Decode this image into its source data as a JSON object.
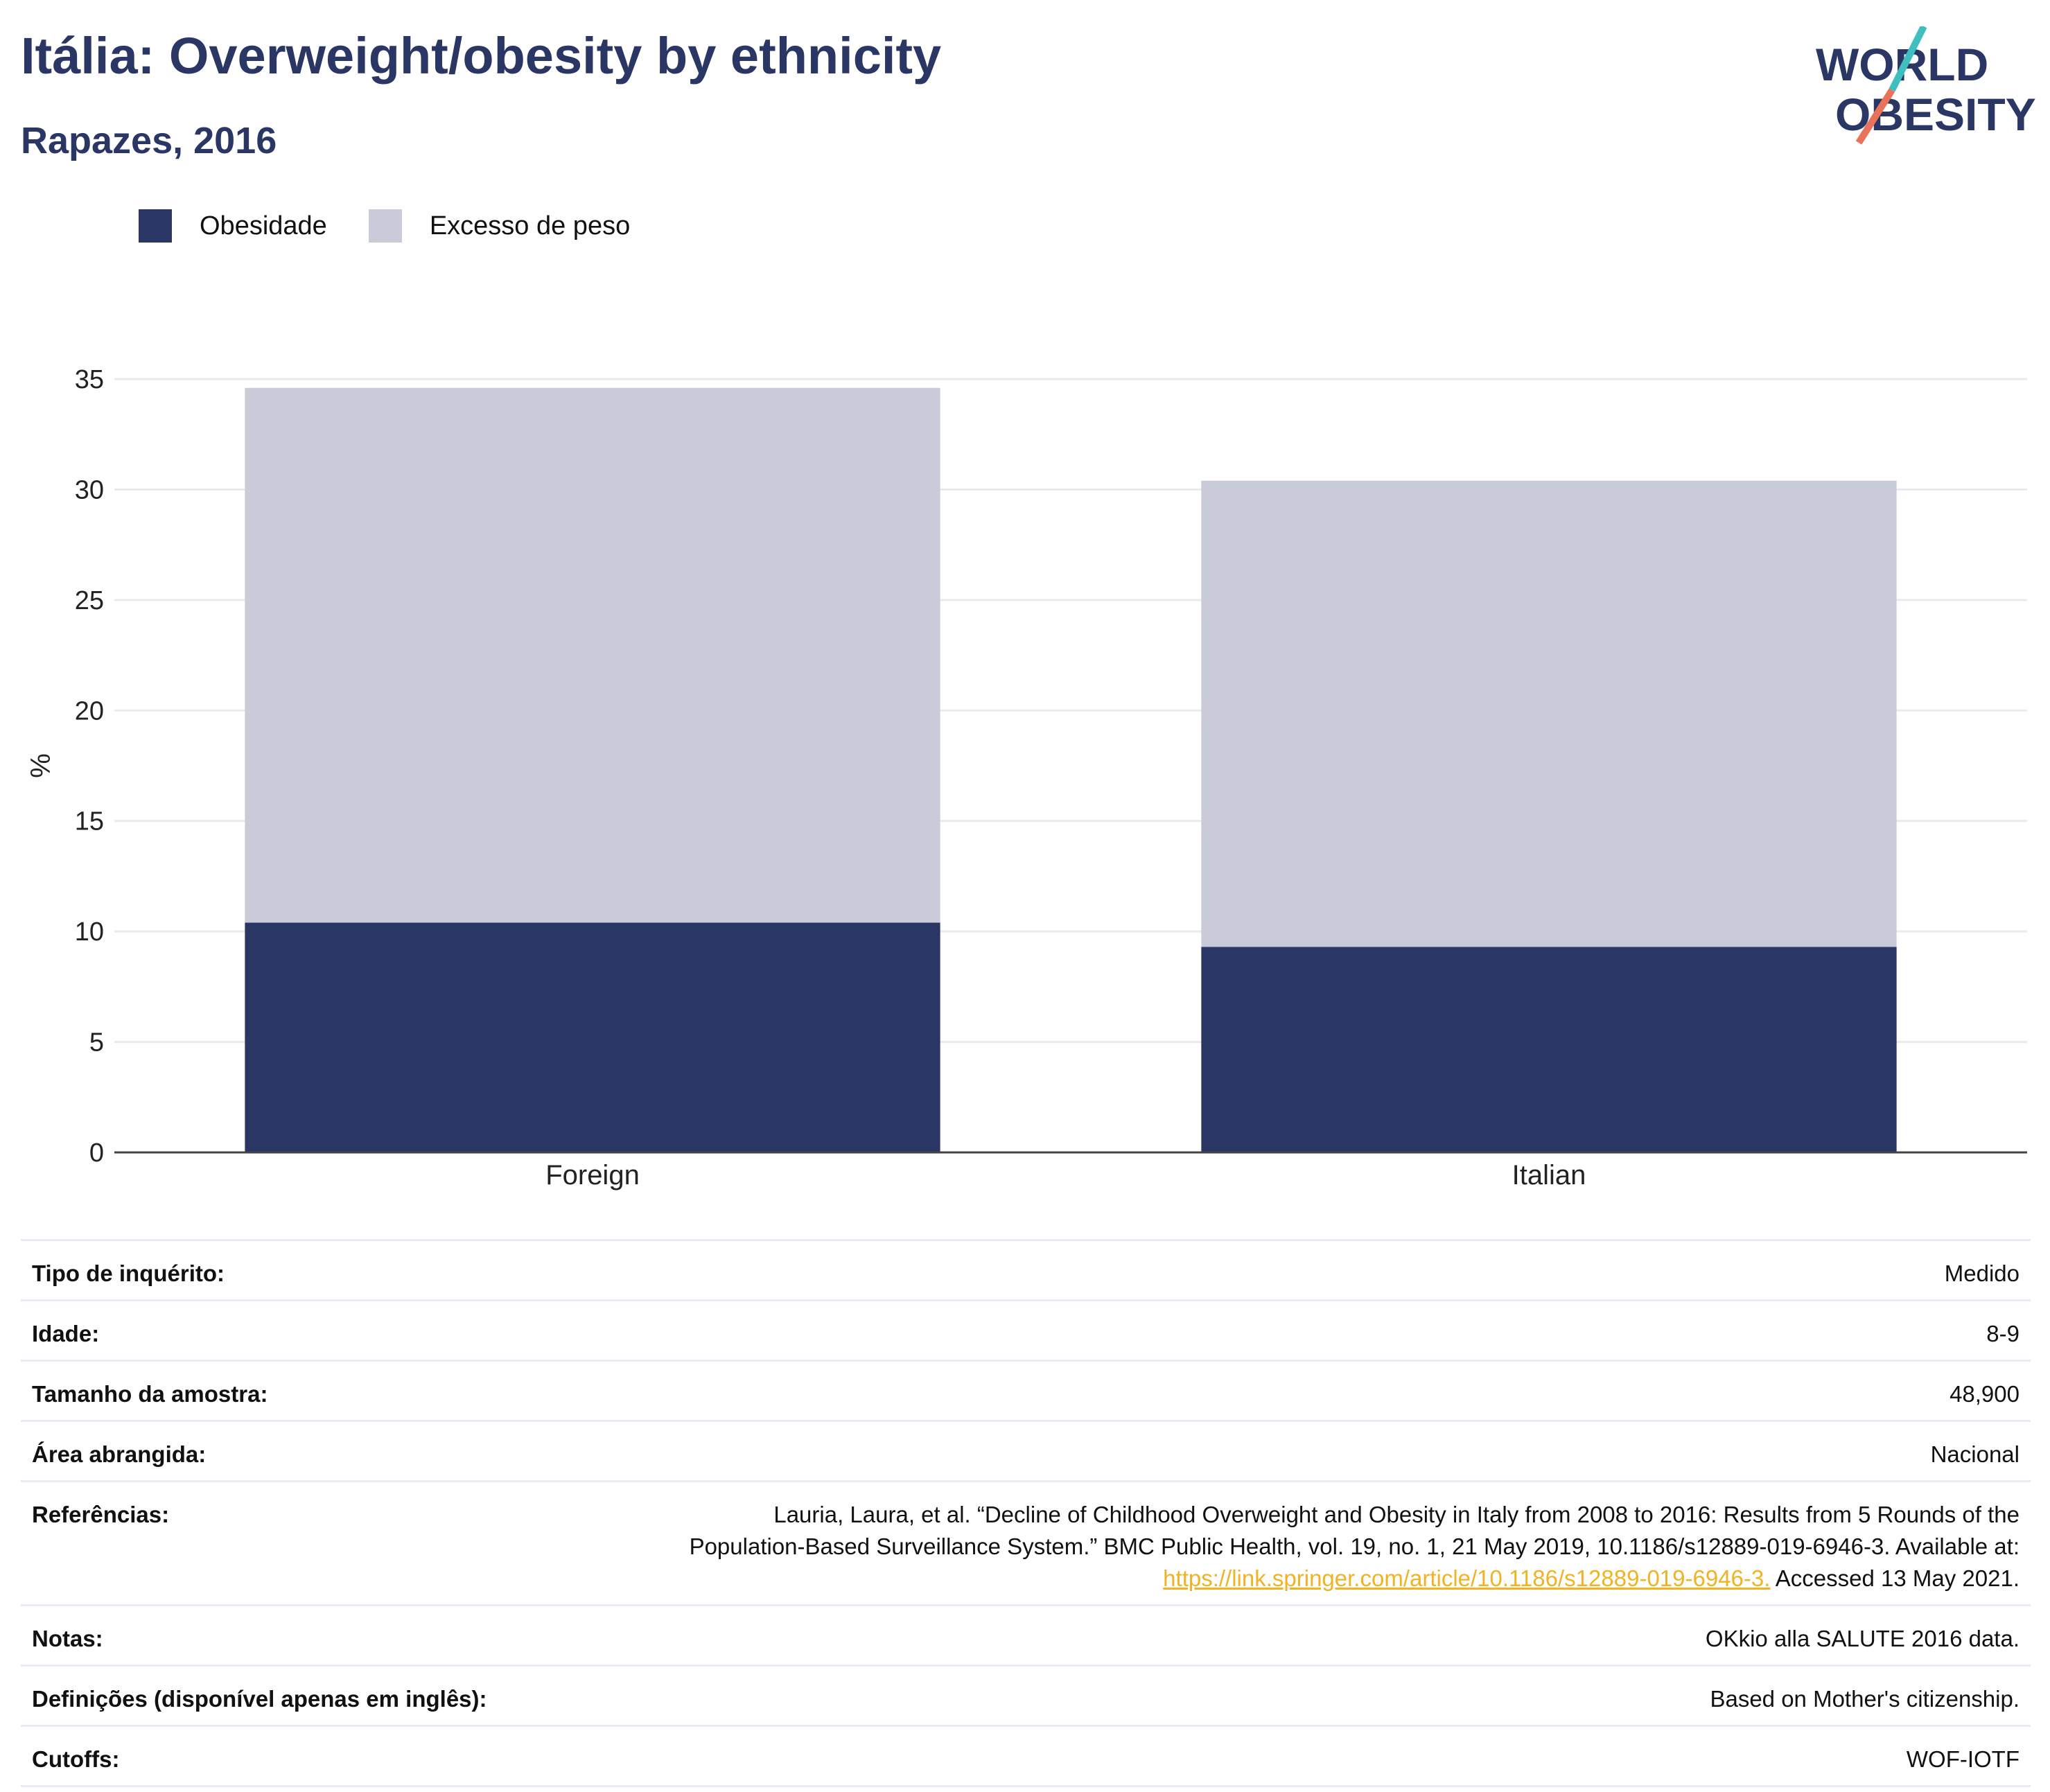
{
  "header": {
    "title": "Itália: Overweight/obesity by ethnicity",
    "subtitle": "Rapazes, 2016"
  },
  "logo": {
    "line1": "WORLD",
    "line2": "OBESITY",
    "colors": {
      "text": "#2a3663",
      "slash_teal": "#3fbfbf",
      "slash_coral": "#e8735a"
    }
  },
  "chart_data": {
    "type": "bar",
    "stacked": true,
    "categories": [
      "Foreign",
      "Italian"
    ],
    "series": [
      {
        "name": "Obesidade",
        "color": "#2a3663",
        "values": [
          10.4,
          9.3
        ]
      },
      {
        "name": "Excesso de peso",
        "color": "#c9ccd8",
        "values": [
          24.2,
          21.1
        ]
      }
    ],
    "totals": [
      34.6,
      30.4
    ],
    "ylabel": "%",
    "xlabel": "",
    "ylim": [
      0,
      35
    ],
    "yticks": [
      0,
      5,
      10,
      15,
      20,
      25,
      30,
      35
    ],
    "grid": true,
    "legend_position": "top-left"
  },
  "info": [
    {
      "label": "Tipo de inquérito:",
      "value": "Medido"
    },
    {
      "label": "Idade:",
      "value": "8-9"
    },
    {
      "label": "Tamanho da amostra:",
      "value": "48,900"
    },
    {
      "label": "Área abrangida:",
      "value": "Nacional"
    },
    {
      "label": "Referências:",
      "value_pre": "Lauria, Laura, et al. “Decline of Childhood Overweight and Obesity in Italy from 2008 to 2016: Results from 5 Rounds of the Population-Based Surveillance System.” BMC Public Health, vol. 19, no. 1, 21 May 2019, 10.1186/s12889-019-6946-3. Available at:",
      "link": "https://link.springer.com/article/10.1186/s12889-019-6946-3.",
      "value_post": "Accessed 13 May 2021."
    },
    {
      "label": "Notas:",
      "value": "OKkio alla SALUTE 2016 data."
    },
    {
      "label": "Definições (disponível apenas em inglês):",
      "value": "Based on Mother's citizenship."
    },
    {
      "label": "Cutoffs:",
      "value": "WOF-IOTF"
    }
  ]
}
